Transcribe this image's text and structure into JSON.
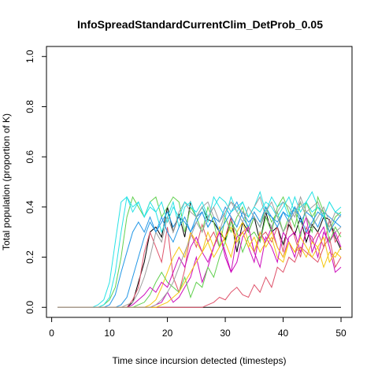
{
  "chart_data": {
    "type": "line",
    "title": "InfoSpreadStandardCurrentClim_DetProb_0.05",
    "xlabel": "Time since incursion detected (timesteps)",
    "ylabel": "Total population (proportion of K)",
    "xlim": [
      -0.9,
      51.9
    ],
    "ylim": [
      -0.04,
      1.04
    ],
    "xticks": [
      0,
      10,
      20,
      30,
      40,
      50
    ],
    "yticks": [
      0.0,
      0.2,
      0.4,
      0.6,
      0.8,
      1.0
    ],
    "xtick_labels": [
      "0",
      "10",
      "20",
      "30",
      "40",
      "50"
    ],
    "ytick_labels": [
      "0.0",
      "0.2",
      "0.4",
      "0.6",
      "0.8",
      "1.0"
    ],
    "grid": false,
    "x": [
      1,
      2,
      3,
      4,
      5,
      6,
      7,
      8,
      9,
      10,
      11,
      12,
      13,
      14,
      15,
      16,
      17,
      18,
      19,
      20,
      21,
      22,
      23,
      24,
      25,
      26,
      27,
      28,
      29,
      30,
      31,
      32,
      33,
      34,
      35,
      36,
      37,
      38,
      39,
      40,
      41,
      42,
      43,
      44,
      45,
      46,
      47,
      48,
      49,
      50
    ],
    "series": [
      {
        "color": "#000000",
        "values": [
          0,
          0,
          0,
          0,
          0,
          0,
          0,
          0,
          0,
          0,
          0,
          0,
          0,
          0.02,
          0.1,
          0.18,
          0.3,
          0.32,
          0.28,
          0.4,
          0.3,
          0.37,
          0.28,
          0.42,
          0.36,
          0.4,
          0.35,
          0.34,
          0.3,
          0.27,
          0.36,
          0.22,
          0.34,
          0.3,
          0.36,
          0.26,
          0.38,
          0.3,
          0.32,
          0.25,
          0.33,
          0.29,
          0.36,
          0.26,
          0.33,
          0.3,
          0.36,
          0.35,
          0.28,
          0.23
        ]
      },
      {
        "color": "#DF536B",
        "values": [
          0,
          0,
          0,
          0,
          0,
          0,
          0,
          0,
          0,
          0,
          0,
          0,
          0,
          0.03,
          0.08,
          0.22,
          0.3,
          0.24,
          0.18,
          0.32,
          0.12,
          0.06,
          0.15,
          0.3,
          0.24,
          0.33,
          0.26,
          0.3,
          0.24,
          0.28,
          0.36,
          0.26,
          0.3,
          0.32,
          0.22,
          0.28,
          0.3,
          0.26,
          0.32,
          0.22,
          0.35,
          0.28,
          0.2,
          0.32,
          0.26,
          0.3,
          0.24,
          0.35,
          0.26,
          0.3
        ]
      },
      {
        "color": "#61D04F",
        "values": [
          0,
          0,
          0,
          0,
          0,
          0,
          0,
          0,
          0.01,
          0.03,
          0.08,
          0.2,
          0.36,
          0.44,
          0.4,
          0.36,
          0.42,
          0.44,
          0.36,
          0.4,
          0.44,
          0.42,
          0.3,
          0.4,
          0.36,
          0.3,
          0.4,
          0.34,
          0.24,
          0.36,
          0.3,
          0.36,
          0.4,
          0.3,
          0.36,
          0.32,
          0.4,
          0.34,
          0.38,
          0.3,
          0.36,
          0.4,
          0.28,
          0.42,
          0.36,
          0.4,
          0.38,
          0.3,
          0.36,
          0.38
        ]
      },
      {
        "color": "#2297E6",
        "values": [
          0,
          0,
          0,
          0,
          0,
          0,
          0,
          0,
          0,
          0.01,
          0.05,
          0.14,
          0.22,
          0.3,
          0.34,
          0.3,
          0.36,
          0.3,
          0.34,
          0.38,
          0.32,
          0.36,
          0.34,
          0.3,
          0.36,
          0.38,
          0.32,
          0.36,
          0.34,
          0.4,
          0.36,
          0.32,
          0.38,
          0.34,
          0.36,
          0.32,
          0.38,
          0.36,
          0.34,
          0.38,
          0.36,
          0.4,
          0.34,
          0.38,
          0.36,
          0.32,
          0.38,
          0.36,
          0.34,
          0.37
        ]
      },
      {
        "color": "#28E2E5",
        "values": [
          0,
          0,
          0,
          0,
          0,
          0,
          0,
          0.01,
          0.03,
          0.1,
          0.26,
          0.42,
          0.44,
          0.38,
          0.42,
          0.36,
          0.42,
          0.38,
          0.3,
          0.36,
          0.42,
          0.32,
          0.4,
          0.42,
          0.36,
          0.4,
          0.34,
          0.44,
          0.4,
          0.36,
          0.44,
          0.38,
          0.42,
          0.36,
          0.4,
          0.46,
          0.38,
          0.44,
          0.4,
          0.42,
          0.36,
          0.44,
          0.38,
          0.42,
          0.46,
          0.4,
          0.36,
          0.42,
          0.38,
          0.4
        ]
      },
      {
        "color": "#CD0BBC",
        "values": [
          0,
          0,
          0,
          0,
          0,
          0,
          0,
          0,
          0,
          0,
          0,
          0,
          0,
          0,
          0,
          0,
          0,
          0.01,
          0.02,
          0.06,
          0.02,
          0.04,
          0.08,
          0.12,
          0.2,
          0.1,
          0.16,
          0.24,
          0.3,
          0.22,
          0.14,
          0.28,
          0.3,
          0.24,
          0.18,
          0.3,
          0.26,
          0.32,
          0.24,
          0.2,
          0.28,
          0.3,
          0.22,
          0.3,
          0.28,
          0.2,
          0.3,
          0.26,
          0.3,
          0.24
        ]
      },
      {
        "color": "#F5C710",
        "values": [
          0,
          0,
          0,
          0,
          0,
          0,
          0,
          0,
          0,
          0,
          0,
          0,
          0,
          0,
          0,
          0,
          0.01,
          0.03,
          0.08,
          0.14,
          0.2,
          0.24,
          0.2,
          0.3,
          0.26,
          0.22,
          0.3,
          0.24,
          0.32,
          0.26,
          0.2,
          0.3,
          0.34,
          0.26,
          0.22,
          0.3,
          0.24,
          0.28,
          0.2,
          0.18,
          0.26,
          0.22,
          0.24,
          0.2,
          0.26,
          0.24,
          0.16,
          0.22,
          0.2,
          0.24
        ]
      },
      {
        "color": "#9E9E9E",
        "values": [
          0,
          0,
          0,
          0,
          0,
          0,
          0,
          0,
          0,
          0,
          0,
          0,
          0.01,
          0.02,
          0.06,
          0.12,
          0.2,
          0.3,
          0.26,
          0.36,
          0.3,
          0.38,
          0.42,
          0.38,
          0.36,
          0.4,
          0.42,
          0.36,
          0.3,
          0.38,
          0.42,
          0.4,
          0.38,
          0.36,
          0.4,
          0.44,
          0.36,
          0.32,
          0.38,
          0.42,
          0.4,
          0.36,
          0.44,
          0.38,
          0.4,
          0.42,
          0.36,
          0.32,
          0.38,
          0.36
        ]
      },
      {
        "color": "#000000",
        "values": [
          0,
          0,
          0,
          0,
          0,
          0,
          0,
          0,
          0,
          0,
          0,
          0,
          0,
          0,
          0,
          0,
          0,
          0,
          0,
          0,
          0,
          0,
          0,
          0,
          0,
          0,
          0,
          0,
          0,
          0,
          0,
          0,
          0,
          0,
          0,
          0,
          0,
          0,
          0,
          0,
          0,
          0,
          0,
          0,
          0,
          0,
          0,
          0,
          0,
          0
        ]
      },
      {
        "color": "#DF536B",
        "values": [
          0,
          0,
          0,
          0,
          0,
          0,
          0,
          0,
          0,
          0,
          0,
          0,
          0,
          0,
          0,
          0,
          0,
          0,
          0,
          0,
          0,
          0,
          0,
          0,
          0,
          0,
          0.01,
          0.02,
          0.04,
          0.03,
          0.06,
          0.08,
          0.05,
          0.04,
          0.09,
          0.06,
          0.12,
          0.08,
          0.16,
          0.14,
          0.2,
          0.18,
          0.24,
          0.22,
          0.2,
          0.18,
          0.24,
          0.28,
          0.16,
          0.2
        ]
      },
      {
        "color": "#61D04F",
        "values": [
          0,
          0,
          0,
          0,
          0,
          0,
          0,
          0,
          0,
          0,
          0,
          0,
          0,
          0,
          0.01,
          0.02,
          0.05,
          0.1,
          0.14,
          0.1,
          0.08,
          0.06,
          0.12,
          0.04,
          0.1,
          0.08,
          0.16,
          0.12,
          0.2,
          0.26,
          0.34,
          0.3,
          0.22,
          0.28,
          0.3,
          0.26,
          0.36,
          0.3,
          0.4,
          0.44,
          0.38,
          0.32,
          0.42,
          0.36,
          0.3,
          0.44,
          0.38,
          0.26,
          0.32,
          0.28
        ]
      },
      {
        "color": "#2297E6",
        "values": [
          0,
          0,
          0,
          0,
          0,
          0,
          0,
          0,
          0,
          0,
          0,
          0.01,
          0.04,
          0.12,
          0.2,
          0.28,
          0.34,
          0.3,
          0.36,
          0.3,
          0.26,
          0.32,
          0.36,
          0.3,
          0.34,
          0.38,
          0.32,
          0.36,
          0.3,
          0.34,
          0.38,
          0.42,
          0.36,
          0.32,
          0.38,
          0.34,
          0.4,
          0.36,
          0.32,
          0.38,
          0.34,
          0.4,
          0.36,
          0.3,
          0.34,
          0.38,
          0.36,
          0.3,
          0.34,
          0.32
        ]
      },
      {
        "color": "#28E2E5",
        "values": [
          0,
          0,
          0,
          0,
          0,
          0,
          0,
          0,
          0.01,
          0.04,
          0.14,
          0.3,
          0.44,
          0.4,
          0.42,
          0.36,
          0.4,
          0.38,
          0.42,
          0.34,
          0.4,
          0.36,
          0.42,
          0.4,
          0.38,
          0.42,
          0.36,
          0.4,
          0.44,
          0.42,
          0.38,
          0.4,
          0.42,
          0.36,
          0.4,
          0.38,
          0.42,
          0.4,
          0.36,
          0.4,
          0.44,
          0.38,
          0.4,
          0.42,
          0.38,
          0.4,
          0.36,
          0.42,
          0.38,
          0.37
        ]
      },
      {
        "color": "#CD0BBC",
        "values": [
          0,
          0,
          0,
          0,
          0,
          0,
          0,
          0,
          0,
          0,
          0,
          0,
          0,
          0.01,
          0.03,
          0.05,
          0.08,
          0.06,
          0.1,
          0.08,
          0.14,
          0.2,
          0.16,
          0.24,
          0.28,
          0.22,
          0.18,
          0.24,
          0.3,
          0.2,
          0.14,
          0.18,
          0.28,
          0.32,
          0.22,
          0.16,
          0.28,
          0.24,
          0.18,
          0.3,
          0.26,
          0.2,
          0.3,
          0.36,
          0.22,
          0.28,
          0.32,
          0.24,
          0.14,
          0.16
        ]
      },
      {
        "color": "#F5C710",
        "values": [
          0,
          0,
          0,
          0,
          0,
          0,
          0,
          0,
          0,
          0,
          0,
          0,
          0,
          0,
          0,
          0,
          0,
          0,
          0.01,
          0.02,
          0.04,
          0.06,
          0.1,
          0.14,
          0.18,
          0.22,
          0.26,
          0.2,
          0.24,
          0.28,
          0.32,
          0.26,
          0.3,
          0.24,
          0.28,
          0.22,
          0.26,
          0.3,
          0.24,
          0.2,
          0.26,
          0.22,
          0.28,
          0.24,
          0.2,
          0.24,
          0.28,
          0.18,
          0.22,
          0.2
        ]
      },
      {
        "color": "#9E9E9E",
        "values": [
          0,
          0,
          0,
          0,
          0,
          0,
          0,
          0,
          0,
          0,
          0,
          0,
          0,
          0,
          0,
          0,
          0,
          0.01,
          0.03,
          0.06,
          0.1,
          0.16,
          0.22,
          0.28,
          0.34,
          0.3,
          0.36,
          0.4,
          0.34,
          0.38,
          0.42,
          0.38,
          0.34,
          0.4,
          0.36,
          0.32,
          0.38,
          0.42,
          0.36,
          0.3,
          0.34,
          0.38,
          0.42,
          0.36,
          0.32,
          0.36,
          0.4,
          0.34,
          0.3,
          0.32
        ]
      }
    ]
  }
}
